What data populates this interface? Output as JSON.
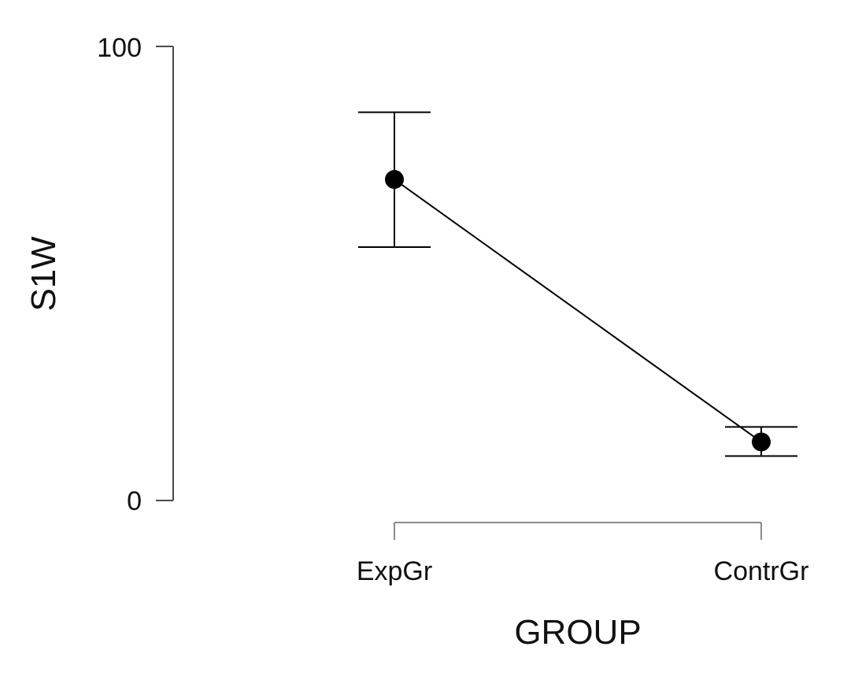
{
  "chart_data": {
    "type": "line",
    "title": "",
    "xlabel": "GROUP",
    "ylabel": "S1W",
    "categories": [
      "ExpGr",
      "ContrGr"
    ],
    "y_ticks": [
      "0",
      "100"
    ],
    "ylim": [
      0,
      100
    ],
    "grid": false,
    "series": [
      {
        "values": [
          70.7,
          12.9
        ],
        "error_lower": [
          55.8,
          9.8
        ],
        "error_upper": [
          85.5,
          16.2
        ]
      }
    ]
  }
}
